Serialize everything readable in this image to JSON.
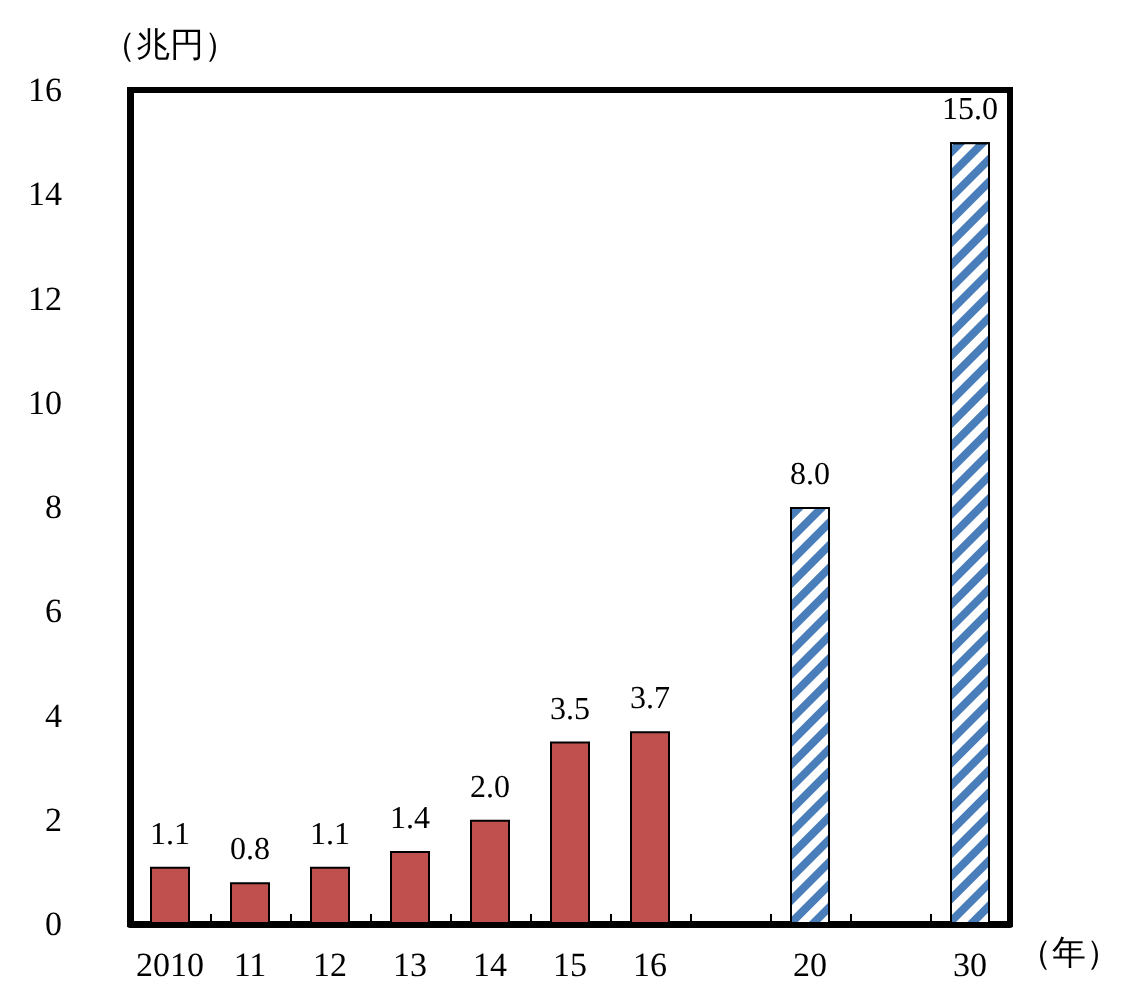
{
  "chart_data": {
    "type": "bar",
    "ylabel": "（兆円）",
    "xlabel": "（年）",
    "categories": [
      "2010",
      "11",
      "12",
      "13",
      "14",
      "15",
      "16",
      null,
      "20",
      null,
      "30"
    ],
    "series": [
      {
        "color": "#c0504d",
        "values": [
          1.1,
          0.8,
          1.1,
          1.4,
          2.0,
          3.5,
          3.7,
          null,
          null,
          null,
          null
        ],
        "value_labels": [
          "1.1",
          "0.8",
          "1.1",
          "1.4",
          "2.0",
          "3.5",
          "3.7",
          null,
          null,
          null,
          null
        ]
      },
      {
        "color": "#4a7ebb",
        "values": [
          null,
          null,
          null,
          null,
          null,
          null,
          null,
          null,
          8.0,
          null,
          15.0
        ],
        "value_labels": [
          null,
          null,
          null,
          null,
          null,
          null,
          null,
          null,
          "8.0",
          null,
          "15.0"
        ]
      }
    ],
    "ylim": [
      0,
      16
    ],
    "yticks": [
      0,
      2,
      4,
      6,
      8,
      10,
      12,
      14,
      16
    ],
    "grid": false
  }
}
